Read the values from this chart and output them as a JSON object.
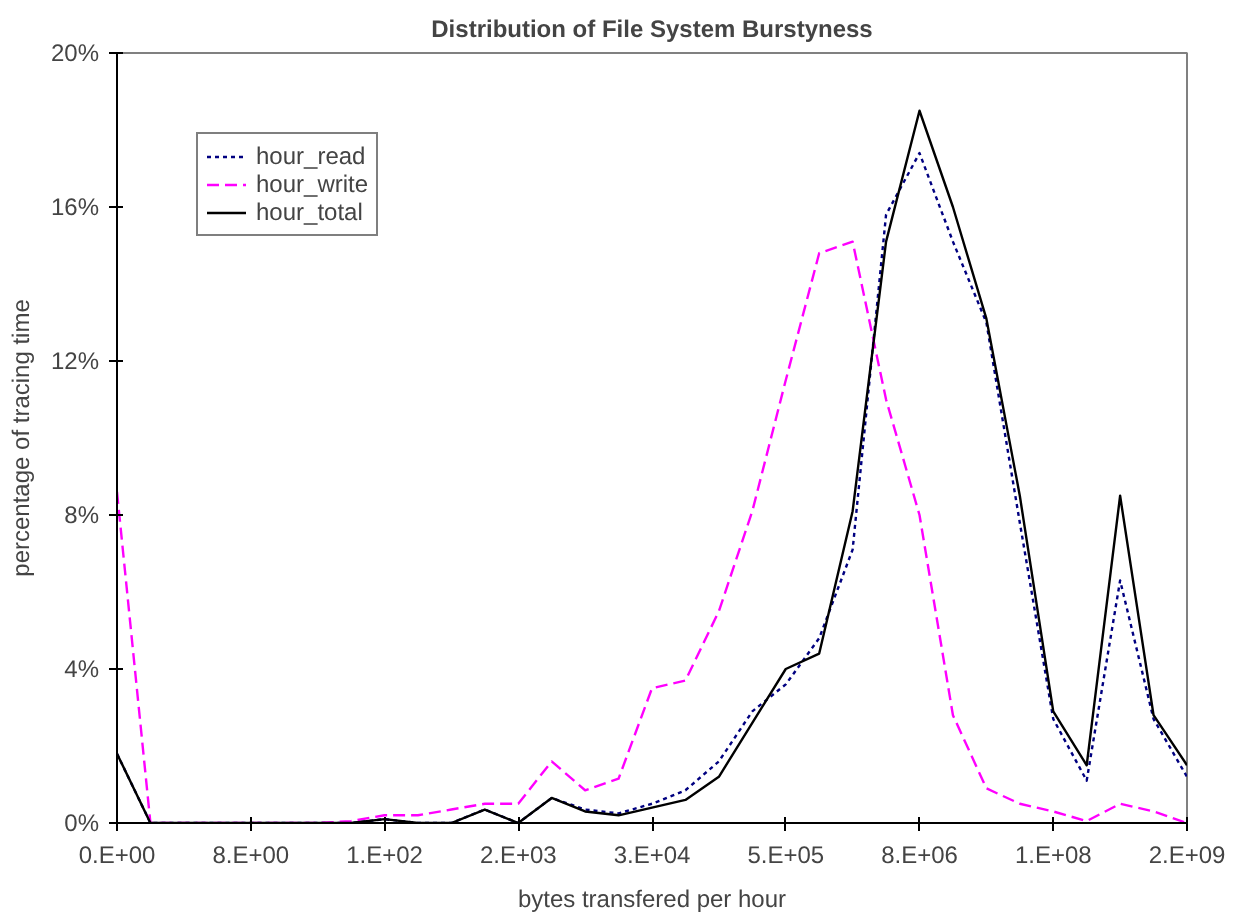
{
  "chart_data": {
    "type": "line",
    "title": "Distribution of File System Burstyness",
    "xlabel": "bytes transfered per hour",
    "ylabel": "percentage of tracing time",
    "categories": [
      "0.E+00",
      null,
      null,
      null,
      "8.E+00",
      null,
      null,
      null,
      "1.E+02",
      null,
      null,
      null,
      "2.E+03",
      null,
      null,
      null,
      "3.E+04",
      null,
      null,
      null,
      "5.E+05",
      null,
      null,
      null,
      "8.E+06",
      null,
      null,
      null,
      "1.E+08",
      null,
      null,
      null,
      "2.E+09"
    ],
    "series": [
      {
        "name": "hour_read",
        "color": "#000080",
        "line_style": "dotted",
        "values": [
          1.8,
          0,
          0,
          0,
          0,
          0,
          0,
          0,
          0.1,
          0,
          0,
          0.35,
          0,
          0.65,
          0.35,
          0.25,
          0.5,
          0.85,
          1.6,
          2.9,
          3.6,
          4.8,
          7.1,
          15.8,
          17.4,
          15.1,
          13.0,
          7.8,
          2.7,
          1.1,
          6.3,
          2.7,
          1.2
        ]
      },
      {
        "name": "hour_write",
        "color": "#ff00ff",
        "line_style": "dashed",
        "values": [
          8.6,
          0,
          0,
          0,
          0,
          0,
          0,
          0.05,
          0.2,
          0.2,
          0.35,
          0.5,
          0.5,
          1.6,
          0.85,
          1.15,
          3.5,
          3.7,
          5.5,
          8.1,
          11.5,
          14.8,
          15.1,
          11.0,
          8.0,
          2.8,
          0.9,
          0.5,
          0.3,
          0.05,
          0.5,
          0.3,
          0
        ]
      },
      {
        "name": "hour_total",
        "color": "#000000",
        "line_style": "solid",
        "values": [
          1.8,
          0,
          0,
          0,
          0,
          0,
          0,
          0,
          0.1,
          0,
          0,
          0.35,
          0,
          0.65,
          0.3,
          0.2,
          0.4,
          0.6,
          1.2,
          2.6,
          4.0,
          4.4,
          8.1,
          15.1,
          18.5,
          16.0,
          13.1,
          8.5,
          2.9,
          1.5,
          8.5,
          2.8,
          1.5
        ]
      }
    ],
    "ylim": [
      0,
      20
    ],
    "yticks": [
      {
        "value": 0,
        "label": "0%"
      },
      {
        "value": 4,
        "label": "4%"
      },
      {
        "value": 8,
        "label": "8%"
      },
      {
        "value": 12,
        "label": "12%"
      },
      {
        "value": 16,
        "label": "16%"
      },
      {
        "value": 20,
        "label": "20%"
      }
    ],
    "grid": false,
    "legend": "top left"
  }
}
